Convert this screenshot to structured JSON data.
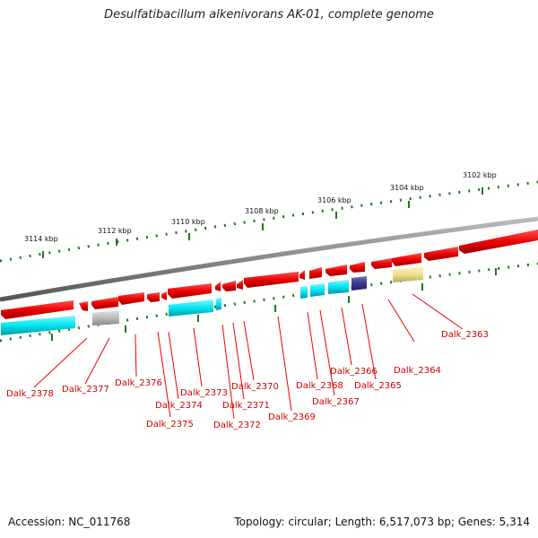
{
  "title": "Desulfatibacillum alkenivorans AK-01, complete genome",
  "footer": {
    "accession": "Accession: NC_011768",
    "topology": "Topology: circular; Length: 6,517,073 bp; Genes: 5,314"
  },
  "scale_labels": [
    "3114 kbp",
    "3112 kbp",
    "3110 kbp",
    "3108 kbp",
    "3106 kbp",
    "3104 kbp",
    "3102 kbp"
  ],
  "gene_labels": [
    "Dalk_2378",
    "Dalk_2377",
    "Dalk_2376",
    "Dalk_2375",
    "Dalk_2374",
    "Dalk_2373",
    "Dalk_2372",
    "Dalk_2371",
    "Dalk_2370",
    "Dalk_2369",
    "Dalk_2368",
    "Dalk_2367",
    "Dalk_2366",
    "Dalk_2365",
    "Dalk_2364",
    "Dalk_2363"
  ],
  "colors": {
    "cds": "#ee0000",
    "rna_cyan": "#00e5ee",
    "grey_feature": "#bbbbbb",
    "navy_feature": "#3a3a8c",
    "yellow_feature": "#f0e08c",
    "tick": "#1a7a1a",
    "backbone": "#888888",
    "label": "#cc0000"
  }
}
